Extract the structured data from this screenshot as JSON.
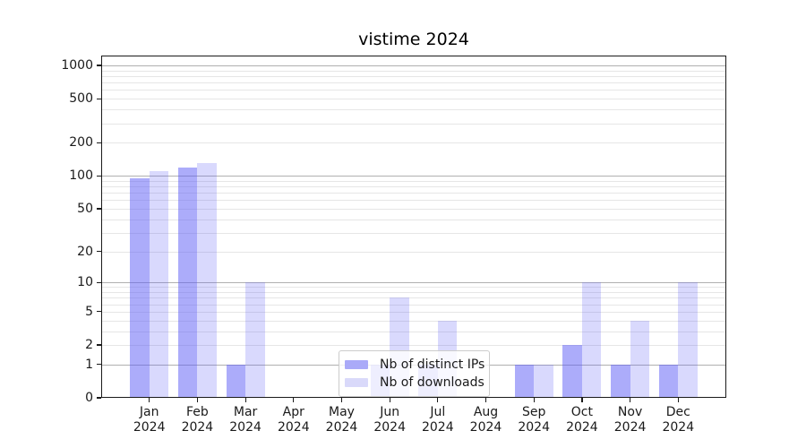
{
  "title": "vistime 2024",
  "chart_data": {
    "type": "bar",
    "title": "vistime 2024",
    "categories": [
      "Jan",
      "Feb",
      "Mar",
      "Apr",
      "May",
      "Jun",
      "Jul",
      "Aug",
      "Sep",
      "Oct",
      "Nov",
      "Dec"
    ],
    "x_tick_year_line": "2024",
    "series": [
      {
        "name": "Nb of distinct IPs",
        "color": "#aaaaf8",
        "fill": "rgba(90,90,245,0.5)",
        "values": [
          95,
          120,
          1,
          0,
          0,
          1,
          1,
          0,
          1,
          2,
          1,
          1
        ]
      },
      {
        "name": "Nb of downloads",
        "color": "#d9d9fa",
        "fill": "rgba(90,90,245,0.23)",
        "values": [
          110,
          130,
          10,
          0,
          0,
          7,
          4,
          0,
          1,
          10,
          4,
          10
        ]
      }
    ],
    "y_axis": {
      "scale": "log1p",
      "tick_values": [
        0,
        1,
        2,
        5,
        10,
        20,
        50,
        100,
        200,
        500,
        1000
      ],
      "major_gridlines": [
        1,
        10,
        100,
        1000
      ],
      "minor_gridlines": [
        2,
        3,
        4,
        5,
        6,
        7,
        8,
        9,
        20,
        30,
        40,
        50,
        60,
        70,
        80,
        90,
        200,
        300,
        400,
        500,
        600,
        700,
        800,
        900
      ],
      "ylim": [
        0,
        1230
      ]
    },
    "xlabel": "",
    "ylabel": "",
    "legend": {
      "position": "lower center",
      "frame": true,
      "entries": [
        "Nb of distinct IPs",
        "Nb of downloads"
      ]
    },
    "colors": {
      "major_grid": "#b0b0b0",
      "minor_grid": "#e6e6e6",
      "axis": "#1a1a1a",
      "background": "#ffffff"
    }
  }
}
